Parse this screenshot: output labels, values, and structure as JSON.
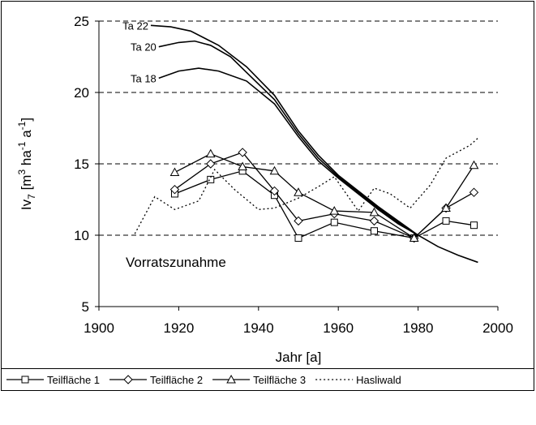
{
  "chart_data": {
    "type": "line",
    "ylabel_parts": [
      "Iv",
      "7",
      " [m",
      "3",
      " ha",
      "-1",
      " a",
      "-1",
      "]"
    ],
    "xlabel": "Jahr [a]",
    "annotation": "Vorratszunahme",
    "xlim": [
      1900,
      2000
    ],
    "xticks": [
      1900,
      1920,
      1940,
      1960,
      1980,
      2000
    ],
    "ylim": [
      5,
      25
    ],
    "yticks": [
      5,
      10,
      15,
      20,
      25
    ],
    "grid": true,
    "series": [
      {
        "name": "Teilfläche 1",
        "color": "#000000",
        "marker": "square",
        "x": [
          1919,
          1928,
          1936,
          1944,
          1950,
          1959,
          1969,
          1979,
          1987,
          1994
        ],
        "values": [
          12.9,
          13.9,
          14.5,
          12.8,
          9.8,
          10.9,
          10.3,
          9.8,
          11.0,
          10.7
        ]
      },
      {
        "name": "Teilfläche 2",
        "color": "#000000",
        "marker": "diamond",
        "x": [
          1919,
          1928,
          1936,
          1944,
          1950,
          1959,
          1969,
          1979,
          1987,
          1994
        ],
        "values": [
          13.2,
          15.0,
          15.8,
          13.1,
          11.0,
          11.5,
          11.0,
          9.8,
          11.9,
          13.0
        ]
      },
      {
        "name": "Teilfläche 3",
        "color": "#000000",
        "marker": "triangle",
        "x": [
          1919,
          1928,
          1936,
          1944,
          1950,
          1959,
          1969,
          1979,
          1987,
          1994
        ],
        "values": [
          14.4,
          15.7,
          14.8,
          14.5,
          13.0,
          11.7,
          11.6,
          9.8,
          11.9,
          14.9
        ]
      },
      {
        "name": "Hasliwald",
        "color": "#000000",
        "marker": "none",
        "dash": "dotted",
        "x": [
          1909,
          1914,
          1919,
          1925,
          1929,
          1934,
          1940,
          1944,
          1950,
          1955,
          1959,
          1965,
          1969,
          1973,
          1978,
          1983,
          1987,
          1993,
          1995
        ],
        "values": [
          10.1,
          12.7,
          11.8,
          12.4,
          14.6,
          13.2,
          11.8,
          11.9,
          12.6,
          13.4,
          14.1,
          11.7,
          13.3,
          12.9,
          11.9,
          13.5,
          15.4,
          16.3,
          16.8
        ]
      }
    ],
    "curves": [
      {
        "name": "Ta 22",
        "color": "#000000",
        "x": [
          1913,
          1918,
          1923,
          1930,
          1937,
          1944,
          1950,
          1955,
          1960,
          1965,
          1970,
          1975,
          1980,
          1985,
          1990,
          1995
        ],
        "values": [
          24.7,
          24.6,
          24.3,
          23.3,
          21.8,
          19.8,
          17.3,
          15.6,
          14.2,
          13.1,
          12.0,
          11.0,
          10.0,
          9.2,
          8.6,
          8.1
        ]
      },
      {
        "name": "Ta 20",
        "color": "#000000",
        "x": [
          1915,
          1920,
          1924,
          1928,
          1933,
          1937,
          1944,
          1950,
          1955,
          1960,
          1965,
          1970,
          1975,
          1980
        ],
        "values": [
          23.2,
          23.5,
          23.6,
          23.3,
          22.5,
          21.4,
          19.5,
          17.1,
          15.4,
          14.1,
          13.0,
          11.9,
          10.9,
          10.0
        ]
      },
      {
        "name": "Ta 18",
        "color": "#000000",
        "x": [
          1915,
          1920,
          1925,
          1930,
          1937,
          1944,
          1950,
          1955,
          1960,
          1965,
          1970,
          1975,
          1980
        ],
        "values": [
          21.0,
          21.5,
          21.7,
          21.5,
          20.8,
          19.2,
          16.9,
          15.2,
          14.0,
          12.9,
          11.8,
          10.8,
          10.0
        ]
      }
    ]
  }
}
